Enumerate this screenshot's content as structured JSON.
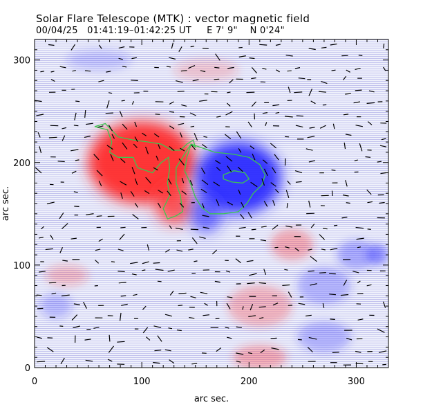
{
  "title": {
    "line1": "Solar Flare Telescope (MTK) : vector magnetic field",
    "line2_date": "00/04/25",
    "line2_time": "01:41:19–01:42:25 UT",
    "line2_east": "E 7' 9\"",
    "line2_north": "N 0'24\""
  },
  "chart_data": {
    "type": "heatmap",
    "title": "Solar Flare Telescope (MTK) : vector magnetic field",
    "subtitle": "00/04/25  01:41:19–01:42:25 UT   E 7' 9\"   N 0'24\"",
    "xlabel": "arc sec.",
    "ylabel": "arc sec.",
    "xlim": [
      0,
      330
    ],
    "ylim": [
      0,
      320
    ],
    "x_ticks": [
      0,
      100,
      200,
      300
    ],
    "y_ticks": [
      0,
      100,
      200,
      300
    ],
    "x_tick_labels": [
      "0",
      "100",
      "200",
      "300"
    ],
    "y_tick_labels": [
      "0",
      "100",
      "200",
      "300"
    ],
    "colors": {
      "positive": "#ff2a2a",
      "negative": "#2a2aff",
      "neutral_line": "#c8c8f0",
      "contour": "#3cc850",
      "vector": "#000000"
    },
    "regions": [
      {
        "polarity": "positive",
        "label": "positive polarity (red)",
        "cx": 100,
        "cy": 200,
        "rx": 50,
        "ry": 40,
        "strength": 1.0
      },
      {
        "polarity": "positive",
        "label": "positive extension",
        "cx": 130,
        "cy": 160,
        "rx": 18,
        "ry": 20,
        "strength": 0.8
      },
      {
        "polarity": "negative",
        "label": "negative polarity (blue)",
        "cx": 190,
        "cy": 185,
        "rx": 40,
        "ry": 35,
        "strength": 1.0
      },
      {
        "polarity": "negative",
        "label": "negative extension",
        "cx": 160,
        "cy": 150,
        "rx": 15,
        "ry": 18,
        "strength": 0.7
      },
      {
        "polarity": "positive",
        "label": "weak plage",
        "cx": 240,
        "cy": 120,
        "rx": 20,
        "ry": 15,
        "strength": 0.35
      },
      {
        "polarity": "negative",
        "label": "weak plage",
        "cx": 300,
        "cy": 110,
        "rx": 18,
        "ry": 14,
        "strength": 0.35
      },
      {
        "polarity": "negative",
        "label": "weak plage",
        "cx": 270,
        "cy": 80,
        "rx": 25,
        "ry": 18,
        "strength": 0.3
      },
      {
        "polarity": "positive",
        "label": "weak plage",
        "cx": 210,
        "cy": 60,
        "rx": 30,
        "ry": 20,
        "strength": 0.3
      },
      {
        "polarity": "positive",
        "label": "weak plage",
        "cx": 210,
        "cy": 10,
        "rx": 25,
        "ry": 12,
        "strength": 0.35
      },
      {
        "polarity": "negative",
        "label": "weak plage",
        "cx": 270,
        "cy": 30,
        "rx": 25,
        "ry": 15,
        "strength": 0.3
      },
      {
        "polarity": "positive",
        "label": "weak plage",
        "cx": 30,
        "cy": 90,
        "rx": 20,
        "ry": 10,
        "strength": 0.25
      },
      {
        "polarity": "negative",
        "label": "weak plage",
        "cx": 20,
        "cy": 60,
        "rx": 15,
        "ry": 12,
        "strength": 0.25
      },
      {
        "polarity": "negative",
        "label": "weak plage",
        "cx": 320,
        "cy": 110,
        "rx": 10,
        "ry": 10,
        "strength": 0.5
      },
      {
        "polarity": "positive",
        "label": "weak plage",
        "cx": 160,
        "cy": 290,
        "rx": 30,
        "ry": 10,
        "strength": 0.2
      },
      {
        "polarity": "negative",
        "label": "weak plage",
        "cx": 60,
        "cy": 300,
        "rx": 30,
        "ry": 10,
        "strength": 0.2
      }
    ],
    "contours": [
      {
        "name": "positive-contour",
        "points": [
          [
            56,
            235
          ],
          [
            68,
            232
          ],
          [
            72,
            220
          ],
          [
            70,
            210
          ],
          [
            78,
            205
          ],
          [
            92,
            205
          ],
          [
            96,
            195
          ],
          [
            110,
            190
          ],
          [
            118,
            200
          ],
          [
            125,
            205
          ],
          [
            126,
            195
          ],
          [
            124,
            180
          ],
          [
            126,
            168
          ],
          [
            120,
            155
          ],
          [
            124,
            145
          ],
          [
            132,
            148
          ],
          [
            138,
            152
          ],
          [
            136,
            168
          ],
          [
            132,
            180
          ],
          [
            132,
            195
          ],
          [
            138,
            205
          ],
          [
            142,
            212
          ],
          [
            146,
            218
          ],
          [
            150,
            215
          ],
          [
            148,
            222
          ],
          [
            142,
            218
          ],
          [
            136,
            212
          ],
          [
            128,
            212
          ],
          [
            118,
            218
          ],
          [
            106,
            220
          ],
          [
            92,
            222
          ],
          [
            78,
            225
          ],
          [
            66,
            238
          ],
          [
            56,
            235
          ]
        ]
      },
      {
        "name": "negative-contour",
        "points": [
          [
            146,
            218
          ],
          [
            168,
            210
          ],
          [
            186,
            208
          ],
          [
            200,
            205
          ],
          [
            210,
            198
          ],
          [
            215,
            188
          ],
          [
            212,
            178
          ],
          [
            204,
            170
          ],
          [
            198,
            160
          ],
          [
            190,
            152
          ],
          [
            176,
            150
          ],
          [
            164,
            150
          ],
          [
            156,
            156
          ],
          [
            150,
            166
          ],
          [
            146,
            178
          ],
          [
            140,
            192
          ],
          [
            142,
            205
          ],
          [
            146,
            218
          ]
        ]
      },
      {
        "name": "inner-negative-contour",
        "points": [
          [
            176,
            188
          ],
          [
            186,
            192
          ],
          [
            196,
            190
          ],
          [
            200,
            184
          ],
          [
            194,
            180
          ],
          [
            184,
            181
          ],
          [
            176,
            184
          ],
          [
            176,
            188
          ]
        ]
      }
    ],
    "vector_field": {
      "description": "short black transverse-field arrows across the field of view",
      "x_range": [
        5,
        330
      ],
      "y_range": [
        5,
        315
      ],
      "step": 11
    }
  }
}
